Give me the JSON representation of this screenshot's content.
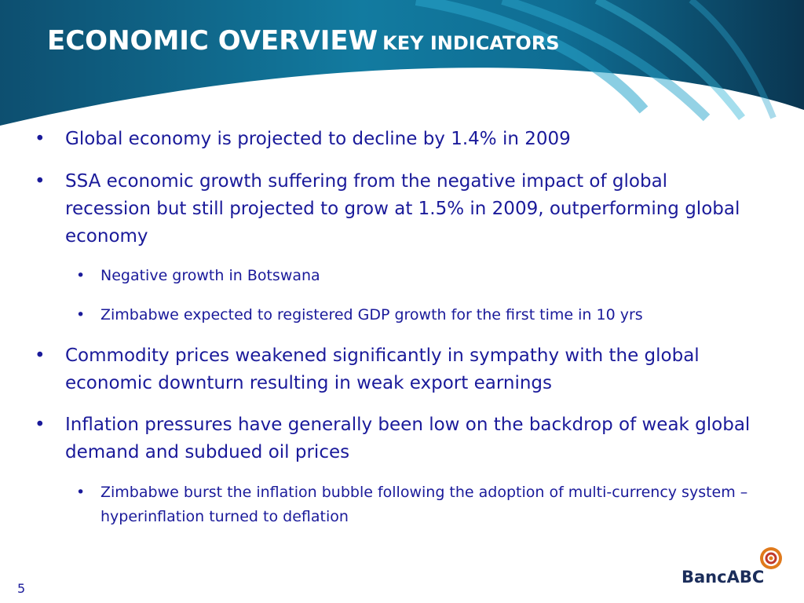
{
  "slide": {
    "title_main": "ECONOMIC OVERVIEW",
    "title_sub": "KEY INDICATORS",
    "page_number": "5",
    "logo_text": "BancABC",
    "colors": {
      "header_dark": "#0d4a6b",
      "header_accent": "#1b8fb5",
      "text": "#1a1a9a",
      "logo_orange": "#e07a1c"
    }
  },
  "bullets": [
    {
      "level": 1,
      "text": "Global economy is projected to decline by 1.4% in 2009"
    },
    {
      "level": 1,
      "text": "SSA economic growth suffering from the negative impact of global recession but still projected to grow at 1.5% in 2009, outperforming global economy"
    },
    {
      "level": 2,
      "text": "Negative growth in Botswana"
    },
    {
      "level": 2,
      "text": "Zimbabwe expected to registered GDP growth for the first time in 10 yrs"
    },
    {
      "level": 1,
      "text": "Commodity prices weakened significantly in sympathy with the global economic downturn resulting in weak export earnings"
    },
    {
      "level": 1,
      "text": "Inflation pressures have generally been low on the backdrop of weak global demand and subdued oil prices"
    },
    {
      "level": 2,
      "text": "Zimbabwe burst the inflation bubble following the adoption of multi-currency system – hyperinflation turned to deflation"
    }
  ]
}
